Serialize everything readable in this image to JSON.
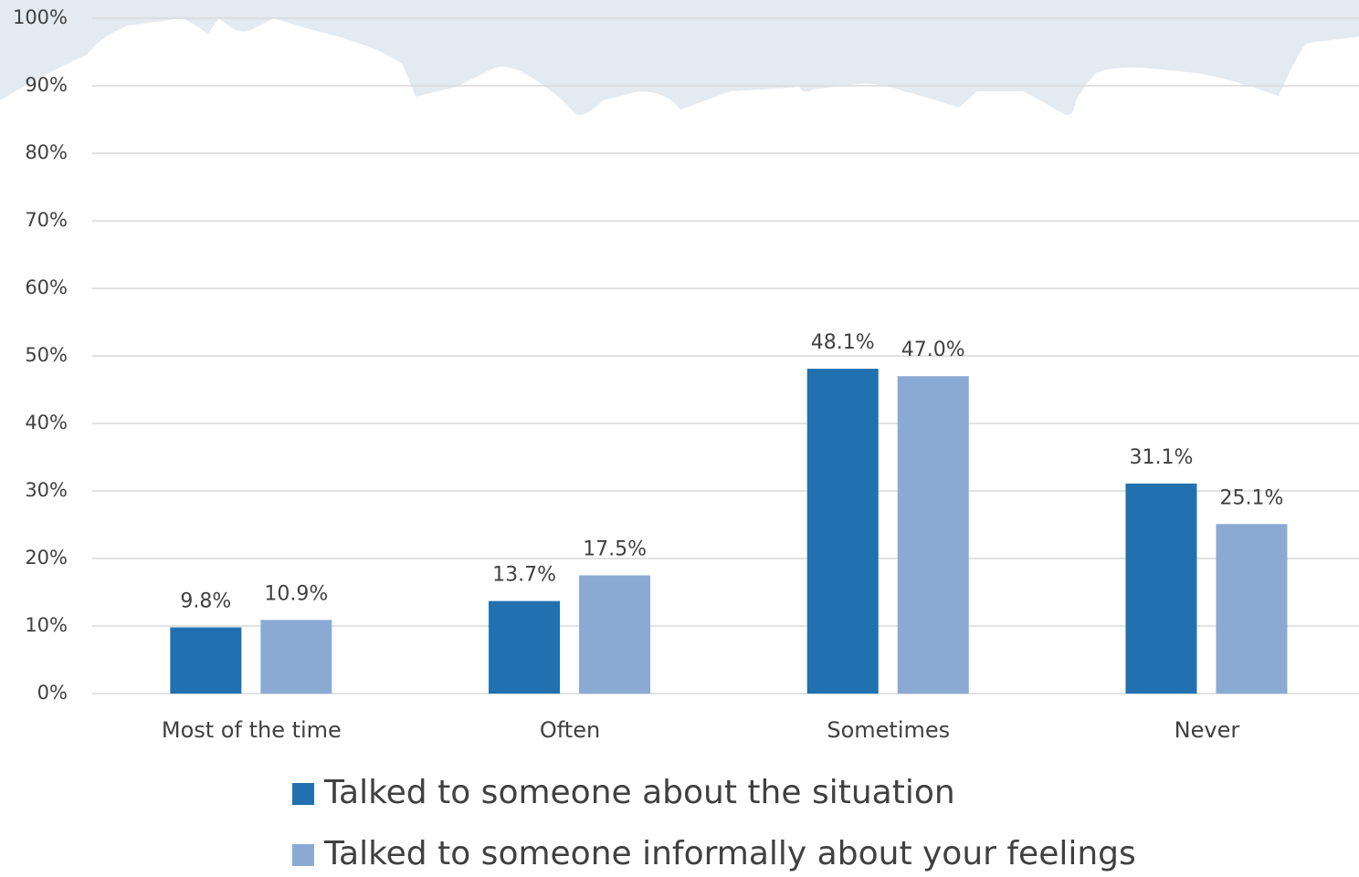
{
  "chart_data": {
    "type": "bar",
    "categories": [
      "Most of the time",
      "Often",
      "Sometimes",
      "Never"
    ],
    "series": [
      {
        "name": "Talked to someone about the situation",
        "color": "#2171b0",
        "values": [
          9.8,
          13.7,
          48.1,
          31.1
        ],
        "value_labels": [
          "9.8%",
          "13.7%",
          "48.1%",
          "31.1%"
        ]
      },
      {
        "name": "Talked to someone informally about your feelings",
        "color": "#8aaad4",
        "values": [
          10.9,
          17.5,
          47.0,
          25.1
        ],
        "value_labels": [
          "10.9%",
          "17.5%",
          "47.0%",
          "25.1%"
        ]
      }
    ],
    "ylim": [
      0,
      100
    ],
    "yticks": [
      {
        "value": 0,
        "label": "0%"
      },
      {
        "value": 10,
        "label": "10%"
      },
      {
        "value": 20,
        "label": "20%"
      },
      {
        "value": 30,
        "label": "30%"
      },
      {
        "value": 40,
        "label": "40%"
      },
      {
        "value": 50,
        "label": "50%"
      },
      {
        "value": 60,
        "label": "60%"
      },
      {
        "value": 70,
        "label": "70%"
      },
      {
        "value": 80,
        "label": "80%"
      },
      {
        "value": 90,
        "label": "90%"
      },
      {
        "value": 100,
        "label": "100%"
      }
    ],
    "grid": true
  }
}
